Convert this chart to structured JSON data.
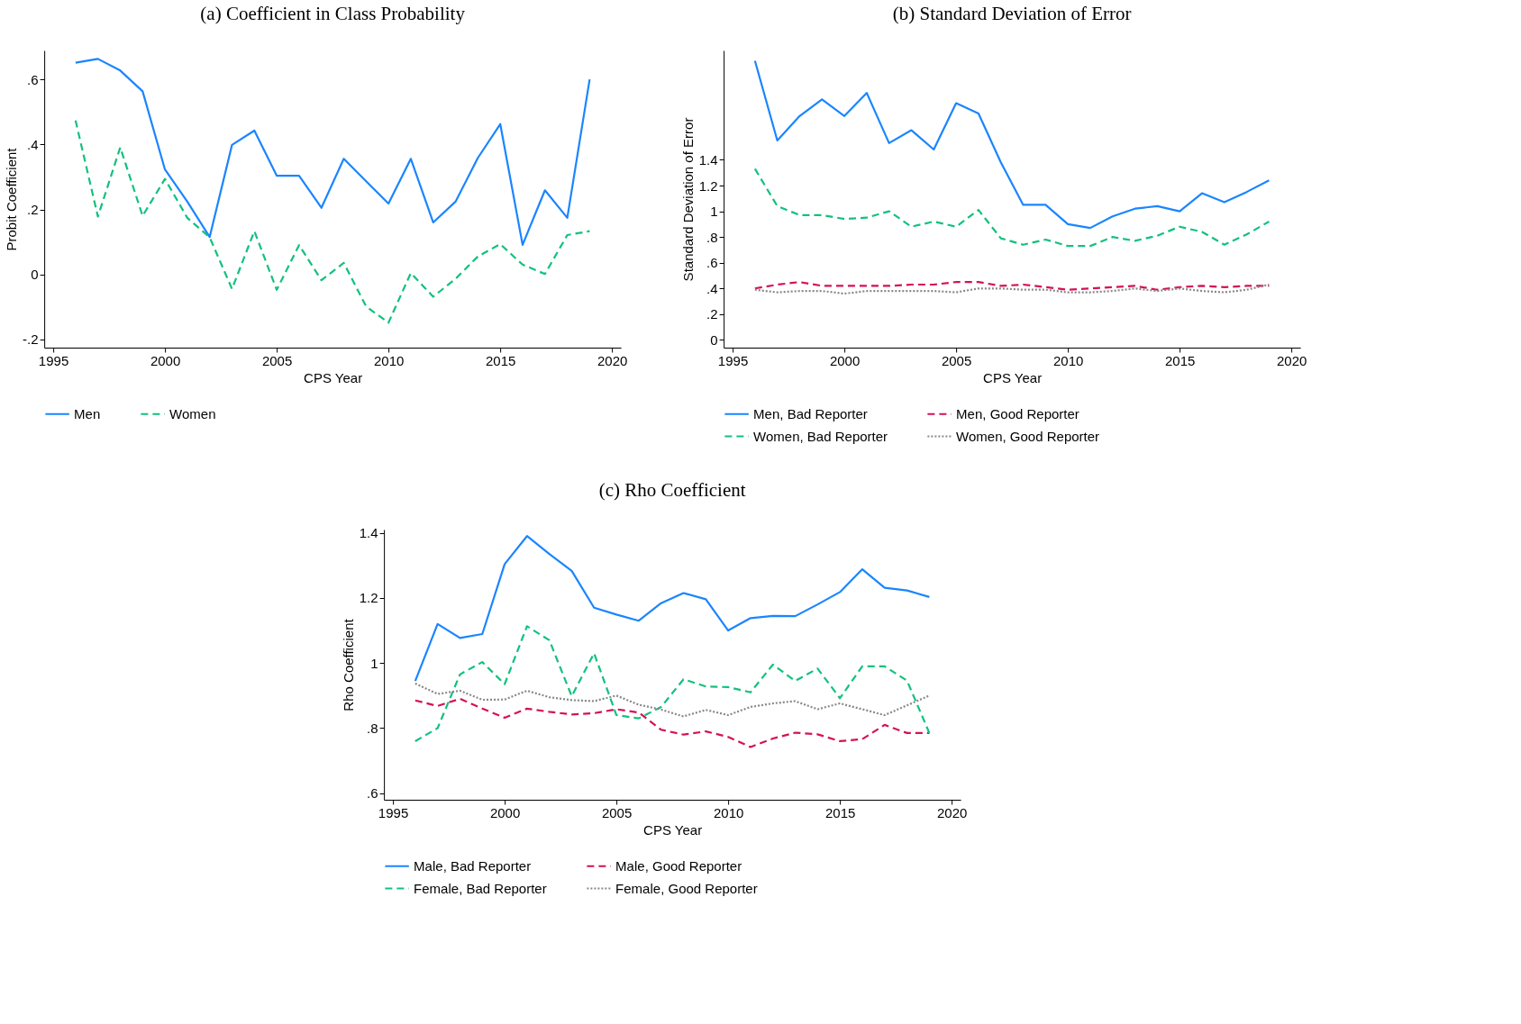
{
  "chart_data": [
    {
      "type": "line",
      "title": "(a) Coefficient in Class Probability",
      "xlabel": "CPS Year",
      "ylabel": "Probit Coefficient",
      "legend": "bottom",
      "grid": false,
      "x": [
        1996,
        1997,
        1998,
        1999,
        2000,
        2001,
        2002,
        2003,
        2004,
        2005,
        2006,
        2007,
        2008,
        2009,
        2010,
        2011,
        2012,
        2013,
        2014,
        2015,
        2016,
        2017,
        2018,
        2019
      ],
      "xlim": [
        1994.6,
        2020.4
      ],
      "xticks": [
        1995,
        2000,
        2005,
        2010,
        2015,
        2020
      ],
      "ylim": [
        -0.226,
        0.69
      ],
      "yticks": [
        {
          "value": -0.2,
          "label": "-.2"
        },
        0,
        {
          "value": 0.2,
          "label": ".2"
        },
        {
          "value": 0.4,
          "label": ".4"
        },
        {
          "value": 0.6,
          "label": ".6"
        }
      ],
      "series": [
        {
          "name": "Men",
          "color": "#1a85ff",
          "line_style": "solid",
          "values": [
            0.652,
            0.664,
            0.628,
            0.564,
            0.323,
            0.224,
            0.115,
            0.399,
            0.443,
            0.304,
            0.304,
            0.205,
            0.356,
            0.287,
            0.218,
            0.356,
            0.16,
            0.224,
            0.359,
            0.463,
            0.091,
            0.259,
            0.174,
            0.601
          ]
        },
        {
          "name": "Women",
          "color": "#11c17e",
          "line_style": "dashed",
          "values": [
            0.474,
            0.178,
            0.391,
            0.18,
            0.294,
            0.174,
            0.114,
            -0.045,
            0.133,
            -0.048,
            0.09,
            -0.018,
            0.035,
            -0.099,
            -0.149,
            0.004,
            -0.069,
            -0.014,
            0.055,
            0.093,
            0.03,
            0.001,
            0.121,
            0.133
          ]
        }
      ]
    },
    {
      "type": "line",
      "title": "(b) Standard Deviation of Error",
      "xlabel": "CPS Year",
      "ylabel": "Standard Deviation of Error",
      "legend": "bottom",
      "grid": false,
      "x": [
        1996,
        1997,
        1998,
        1999,
        2000,
        2001,
        2002,
        2003,
        2004,
        2005,
        2006,
        2007,
        2008,
        2009,
        2010,
        2011,
        2012,
        2013,
        2014,
        2015,
        2016,
        2017,
        2018,
        2019
      ],
      "xlim": [
        1994.6,
        2020.4
      ],
      "xticks": [
        1995,
        2000,
        2005,
        2010,
        2015,
        2020
      ],
      "ylim": [
        -0.06,
        2.25
      ],
      "yticks": [
        0,
        {
          "value": 0.2,
          "label": ".2"
        },
        {
          "value": 0.4,
          "label": ".4"
        },
        {
          "value": 0.6,
          "label": ".6"
        },
        {
          "value": 0.8,
          "label": ".8"
        },
        1,
        1.2,
        1.4
      ],
      "series": [
        {
          "name": "Men, Bad Reporter",
          "color": "#1a85ff",
          "line_style": "solid",
          "values": [
            2.17,
            1.55,
            1.74,
            1.87,
            1.74,
            1.92,
            1.53,
            1.63,
            1.48,
            1.84,
            1.76,
            1.38,
            1.05,
            1.05,
            0.9,
            0.87,
            0.96,
            1.02,
            1.04,
            1.0,
            1.14,
            1.07,
            1.15,
            1.24
          ]
        },
        {
          "name": "Men, Good Reporter",
          "color": "#d41159",
          "line_style": "dashed",
          "values": [
            0.4,
            0.43,
            0.45,
            0.42,
            0.42,
            0.42,
            0.42,
            0.43,
            0.43,
            0.45,
            0.45,
            0.42,
            0.43,
            0.41,
            0.39,
            0.4,
            0.41,
            0.42,
            0.39,
            0.41,
            0.42,
            0.41,
            0.42,
            0.42
          ]
        },
        {
          "name": "Women, Bad Reporter",
          "color": "#11c17e",
          "line_style": "dashed",
          "values": [
            1.33,
            1.04,
            0.97,
            0.97,
            0.94,
            0.95,
            1.0,
            0.88,
            0.92,
            0.88,
            1.01,
            0.79,
            0.74,
            0.78,
            0.73,
            0.73,
            0.8,
            0.77,
            0.81,
            0.88,
            0.84,
            0.74,
            0.82,
            0.92
          ]
        },
        {
          "name": "Women, Good Reporter",
          "color": "#888888",
          "line_style": "dotted",
          "values": [
            0.39,
            0.37,
            0.38,
            0.38,
            0.36,
            0.38,
            0.38,
            0.38,
            0.38,
            0.37,
            0.4,
            0.4,
            0.39,
            0.39,
            0.37,
            0.37,
            0.38,
            0.4,
            0.38,
            0.4,
            0.38,
            0.37,
            0.39,
            0.43
          ]
        }
      ]
    },
    {
      "type": "line",
      "title": "(c) Rho Coefficient",
      "xlabel": "CPS Year",
      "ylabel": "Rho Coefficient",
      "legend": "bottom",
      "grid": false,
      "x": [
        1996,
        1997,
        1998,
        1999,
        2000,
        2001,
        2002,
        2003,
        2004,
        2005,
        2006,
        2007,
        2008,
        2009,
        2010,
        2011,
        2012,
        2013,
        2014,
        2015,
        2016,
        2017,
        2018,
        2019
      ],
      "xlim": [
        1994.6,
        2020.4
      ],
      "xticks": [
        1995,
        2000,
        2005,
        2010,
        2015,
        2020
      ],
      "ylim": [
        0.58,
        1.41
      ],
      "yticks": [
        {
          "value": 0.6,
          "label": ".6"
        },
        {
          "value": 0.8,
          "label": ".8"
        },
        1,
        1.2,
        1.4
      ],
      "series": [
        {
          "name": "Male, Bad Reporter",
          "color": "#1a85ff",
          "line_style": "solid",
          "values": [
            0.945,
            1.12,
            1.077,
            1.089,
            1.304,
            1.39,
            1.335,
            1.283,
            1.17,
            1.149,
            1.13,
            1.184,
            1.215,
            1.196,
            1.1,
            1.138,
            1.145,
            1.144,
            1.18,
            1.218,
            1.288,
            1.231,
            1.223,
            1.203
          ]
        },
        {
          "name": "Male, Good Reporter",
          "color": "#d41159",
          "line_style": "dashed",
          "values": [
            0.885,
            0.868,
            0.89,
            0.86,
            0.832,
            0.86,
            0.85,
            0.842,
            0.846,
            0.858,
            0.848,
            0.795,
            0.78,
            0.79,
            0.773,
            0.742,
            0.768,
            0.786,
            0.781,
            0.76,
            0.766,
            0.81,
            0.785,
            0.785
          ]
        },
        {
          "name": "Female, Bad Reporter",
          "color": "#11c17e",
          "line_style": "dashed",
          "values": [
            0.76,
            0.8,
            0.965,
            1.003,
            0.935,
            1.113,
            1.07,
            0.898,
            1.03,
            0.84,
            0.83,
            0.865,
            0.95,
            0.928,
            0.926,
            0.91,
            0.995,
            0.945,
            0.983,
            0.892,
            0.99,
            0.99,
            0.946,
            0.785
          ]
        },
        {
          "name": "Female, Good Reporter",
          "color": "#888888",
          "line_style": "dotted",
          "values": [
            0.937,
            0.905,
            0.915,
            0.887,
            0.888,
            0.915,
            0.895,
            0.886,
            0.883,
            0.9,
            0.872,
            0.857,
            0.836,
            0.856,
            0.84,
            0.865,
            0.876,
            0.883,
            0.858,
            0.876,
            0.858,
            0.84,
            0.87,
            0.9
          ]
        }
      ]
    }
  ]
}
